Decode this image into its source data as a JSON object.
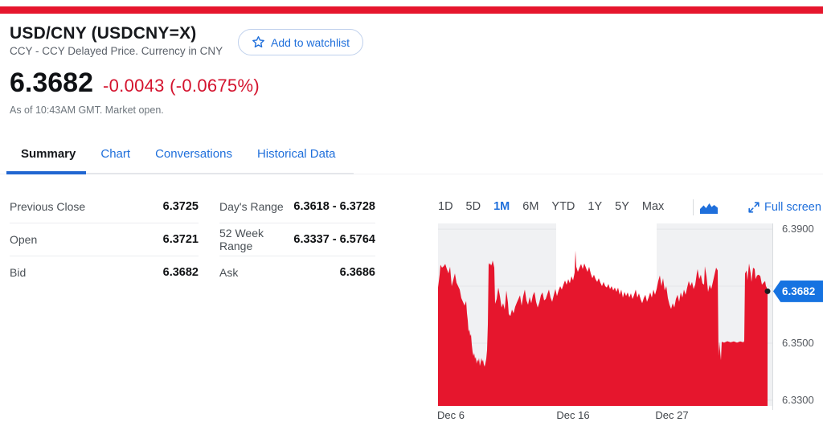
{
  "colors": {
    "brand_red": "#e6162d",
    "chart_red": "#e6162d",
    "negative_red": "#d4132e",
    "link_blue": "#1f6fdb",
    "badge_blue": "#1673e1",
    "band_gray": "#f0f1f3",
    "grid_gray": "#e3e5e8"
  },
  "header": {
    "title": "USD/CNY (USDCNY=X)",
    "subtitle": "CCY - CCY Delayed Price. Currency in CNY",
    "watchlist_button": "Add to watchlist"
  },
  "quote": {
    "price": "6.3682",
    "change": "-0.0043 (-0.0675%)",
    "as_of": "As of 10:43AM GMT. Market open."
  },
  "tabs": [
    {
      "label": "Summary",
      "active": true
    },
    {
      "label": "Chart",
      "active": false
    },
    {
      "label": "Conversations",
      "active": false
    },
    {
      "label": "Historical Data",
      "active": false
    }
  ],
  "summary_table": {
    "left_column": [
      {
        "label": "Previous Close",
        "value": "6.3725"
      },
      {
        "label": "Open",
        "value": "6.3721"
      },
      {
        "label": "Bid",
        "value": "6.3682"
      }
    ],
    "right_column": [
      {
        "label": "Day's Range",
        "value": "6.3618 - 6.3728"
      },
      {
        "label": "52 Week Range",
        "value": "6.3337 - 6.5764"
      },
      {
        "label": "Ask",
        "value": "6.3686"
      }
    ]
  },
  "chart_controls": {
    "ranges": [
      "1D",
      "5D",
      "1M",
      "6M",
      "YTD",
      "1Y",
      "5Y",
      "Max"
    ],
    "active_range": "1M",
    "fullscreen_label": "Full screen"
  },
  "chart_data": {
    "type": "area",
    "series_name": "USD/CNY",
    "range": "1M",
    "y_domain": [
      6.328,
      6.392
    ],
    "y_ticks": [
      {
        "label": "6.3900",
        "value": 6.39
      },
      {
        "label": "6.3700",
        "value": 6.37
      },
      {
        "label": "6.3500",
        "value": 6.35
      },
      {
        "label": "6.3300",
        "value": 6.33
      }
    ],
    "x_tick_labels": [
      {
        "label": "Dec 6",
        "x": 16
      },
      {
        "label": "Dec 16",
        "x": 168
      },
      {
        "label": "Dec 27",
        "x": 291
      }
    ],
    "shaded_bands": [
      [
        0,
        147
      ],
      [
        272,
        417
      ]
    ],
    "plot_size": [
      417,
      227
    ],
    "last_point": {
      "price": 6.3682,
      "label": "6.3682"
    },
    "points": [
      [
        0,
        6.3695
      ],
      [
        2,
        6.374
      ],
      [
        3,
        6.3775
      ],
      [
        5,
        6.3765
      ],
      [
        7,
        6.377
      ],
      [
        9,
        6.3778
      ],
      [
        11,
        6.376
      ],
      [
        13,
        6.3745
      ],
      [
        15,
        6.3768
      ],
      [
        17,
        6.37
      ],
      [
        19,
        6.3722
      ],
      [
        21,
        6.3745
      ],
      [
        23,
        6.3712
      ],
      [
        25,
        6.37
      ],
      [
        27,
        6.3688
      ],
      [
        29,
        6.3658
      ],
      [
        31,
        6.3645
      ],
      [
        33,
        6.3632
      ],
      [
        35,
        6.3648
      ],
      [
        36,
        6.3605
      ],
      [
        37,
        6.358
      ],
      [
        38,
        6.354
      ],
      [
        39,
        6.3548
      ],
      [
        40,
        6.3525
      ],
      [
        41,
        6.3532
      ],
      [
        42,
        6.3495
      ],
      [
        43,
        6.347
      ],
      [
        44,
        6.3455
      ],
      [
        45,
        6.3465
      ],
      [
        46,
        6.3445
      ],
      [
        47,
        6.3452
      ],
      [
        48,
        6.3428
      ],
      [
        49,
        6.3442
      ],
      [
        50,
        6.3435
      ],
      [
        51,
        6.3448
      ],
      [
        52,
        6.342
      ],
      [
        53,
        6.3432
      ],
      [
        54,
        6.3448
      ],
      [
        55,
        6.3435
      ],
      [
        56,
        6.3442
      ],
      [
        57,
        6.3425
      ],
      [
        58,
        6.3418
      ],
      [
        59,
        6.343
      ],
      [
        60,
        6.3445
      ],
      [
        61,
        6.3475
      ],
      [
        62,
        6.3565
      ],
      [
        63,
        6.3782
      ],
      [
        64,
        6.3775
      ],
      [
        65,
        6.378
      ],
      [
        66,
        6.3772
      ],
      [
        67,
        6.3778
      ],
      [
        68,
        6.379
      ],
      [
        69,
        6.3778
      ],
      [
        70,
        6.3765
      ],
      [
        71,
        6.3638
      ],
      [
        73,
        6.3655
      ],
      [
        75,
        6.3695
      ],
      [
        77,
        6.3665
      ],
      [
        79,
        6.3625
      ],
      [
        81,
        6.364
      ],
      [
        83,
        6.3618
      ],
      [
        85,
        6.3685
      ],
      [
        87,
        6.3642
      ],
      [
        88,
        6.3602
      ],
      [
        90,
        6.3595
      ],
      [
        92,
        6.3618
      ],
      [
        94,
        6.3605
      ],
      [
        96,
        6.3628
      ],
      [
        98,
        6.3642
      ],
      [
        100,
        6.3655
      ],
      [
        102,
        6.3668
      ],
      [
        104,
        6.3632
      ],
      [
        106,
        6.3665
      ],
      [
        108,
        6.3688
      ],
      [
        110,
        6.365
      ],
      [
        112,
        6.3635
      ],
      [
        114,
        6.3662
      ],
      [
        116,
        6.364
      ],
      [
        118,
        6.3668
      ],
      [
        120,
        6.368
      ],
      [
        122,
        6.3645
      ],
      [
        124,
        6.3625
      ],
      [
        126,
        6.3642
      ],
      [
        128,
        6.3668
      ],
      [
        130,
        6.3678
      ],
      [
        132,
        6.365
      ],
      [
        134,
        6.3655
      ],
      [
        136,
        6.3672
      ],
      [
        138,
        6.3688
      ],
      [
        140,
        6.366
      ],
      [
        142,
        6.3645
      ],
      [
        144,
        6.3668
      ],
      [
        146,
        6.369
      ],
      [
        148,
        6.3665
      ],
      [
        150,
        6.3685
      ],
      [
        152,
        6.37
      ],
      [
        154,
        6.3688
      ],
      [
        156,
        6.3705
      ],
      [
        158,
        6.372
      ],
      [
        160,
        6.3705
      ],
      [
        162,
        6.3725
      ],
      [
        164,
        6.371
      ],
      [
        166,
        6.3735
      ],
      [
        168,
        6.372
      ],
      [
        170,
        6.3748
      ],
      [
        171,
        6.3825
      ],
      [
        172,
        6.3768
      ],
      [
        174,
        6.375
      ],
      [
        176,
        6.3765
      ],
      [
        178,
        6.3778
      ],
      [
        180,
        6.376
      ],
      [
        182,
        6.378
      ],
      [
        184,
        6.3765
      ],
      [
        186,
        6.375
      ],
      [
        188,
        6.3768
      ],
      [
        190,
        6.3745
      ],
      [
        192,
        6.3728
      ],
      [
        194,
        6.374
      ],
      [
        196,
        6.3725
      ],
      [
        198,
        6.3715
      ],
      [
        200,
        6.3728
      ],
      [
        202,
        6.3712
      ],
      [
        204,
        6.37
      ],
      [
        206,
        6.3715
      ],
      [
        208,
        6.37
      ],
      [
        210,
        6.3695
      ],
      [
        212,
        6.3708
      ],
      [
        214,
        6.369
      ],
      [
        216,
        6.37
      ],
      [
        218,
        6.3685
      ],
      [
        220,
        6.3695
      ],
      [
        222,
        6.368
      ],
      [
        224,
        6.3695
      ],
      [
        226,
        6.367
      ],
      [
        228,
        6.3688
      ],
      [
        230,
        6.366
      ],
      [
        232,
        6.368
      ],
      [
        234,
        6.3665
      ],
      [
        236,
        6.3678
      ],
      [
        238,
        6.366
      ],
      [
        240,
        6.3675
      ],
      [
        242,
        6.3655
      ],
      [
        244,
        6.367
      ],
      [
        246,
        6.3688
      ],
      [
        248,
        6.366
      ],
      [
        250,
        6.3675
      ],
      [
        252,
        6.3655
      ],
      [
        254,
        6.364
      ],
      [
        256,
        6.3658
      ],
      [
        258,
        6.367
      ],
      [
        260,
        6.3645
      ],
      [
        262,
        6.366
      ],
      [
        264,
        6.3678
      ],
      [
        266,
        6.366
      ],
      [
        268,
        6.3688
      ],
      [
        270,
        6.367
      ],
      [
        272,
        6.369
      ],
      [
        274,
        6.3718
      ],
      [
        276,
        6.3738
      ],
      [
        278,
        6.37
      ],
      [
        280,
        6.3728
      ],
      [
        282,
        6.3685
      ],
      [
        284,
        6.37
      ],
      [
        286,
        6.3658
      ],
      [
        288,
        6.3635
      ],
      [
        290,
        6.362
      ],
      [
        292,
        6.364
      ],
      [
        294,
        6.3625
      ],
      [
        296,
        6.3655
      ],
      [
        298,
        6.367
      ],
      [
        300,
        6.3645
      ],
      [
        302,
        6.3678
      ],
      [
        304,
        6.366
      ],
      [
        306,
        6.3688
      ],
      [
        308,
        6.367
      ],
      [
        310,
        6.3695
      ],
      [
        312,
        6.3718
      ],
      [
        314,
        6.37
      ],
      [
        316,
        6.3715
      ],
      [
        318,
        6.369
      ],
      [
        320,
        6.3705
      ],
      [
        322,
        6.3745
      ],
      [
        323,
        6.376
      ],
      [
        325,
        6.3725
      ],
      [
        327,
        6.374
      ],
      [
        329,
        6.371
      ],
      [
        331,
        6.3705
      ],
      [
        332,
        6.377
      ],
      [
        334,
        6.3735
      ],
      [
        336,
        6.368
      ],
      [
        338,
        6.3705
      ],
      [
        340,
        6.369
      ],
      [
        342,
        6.3715
      ],
      [
        344,
        6.374
      ],
      [
        346,
        6.3765
      ],
      [
        348,
        6.3755
      ],
      [
        349,
        6.3455
      ],
      [
        350,
        6.3505
      ],
      [
        352,
        6.344
      ],
      [
        353,
        6.3505
      ],
      [
        356,
        6.3502
      ],
      [
        360,
        6.3507
      ],
      [
        364,
        6.3503
      ],
      [
        368,
        6.3506
      ],
      [
        372,
        6.3502
      ],
      [
        376,
        6.3506
      ],
      [
        380,
        6.3503
      ],
      [
        381,
        6.3508
      ],
      [
        382,
        6.3745
      ],
      [
        384,
        6.3755
      ],
      [
        385,
        6.372
      ],
      [
        387,
        6.378
      ],
      [
        389,
        6.3745
      ],
      [
        390,
        6.3715
      ],
      [
        392,
        6.3765
      ],
      [
        394,
        6.376
      ],
      [
        395,
        6.3725
      ],
      [
        397,
        6.3738
      ],
      [
        399,
        6.374
      ],
      [
        401,
        6.3735
      ],
      [
        403,
        6.3705
      ],
      [
        405,
        6.3712
      ],
      [
        407,
        6.3718
      ],
      [
        408,
        6.37
      ],
      [
        409,
        6.3695
      ],
      [
        410,
        6.3682
      ]
    ]
  }
}
